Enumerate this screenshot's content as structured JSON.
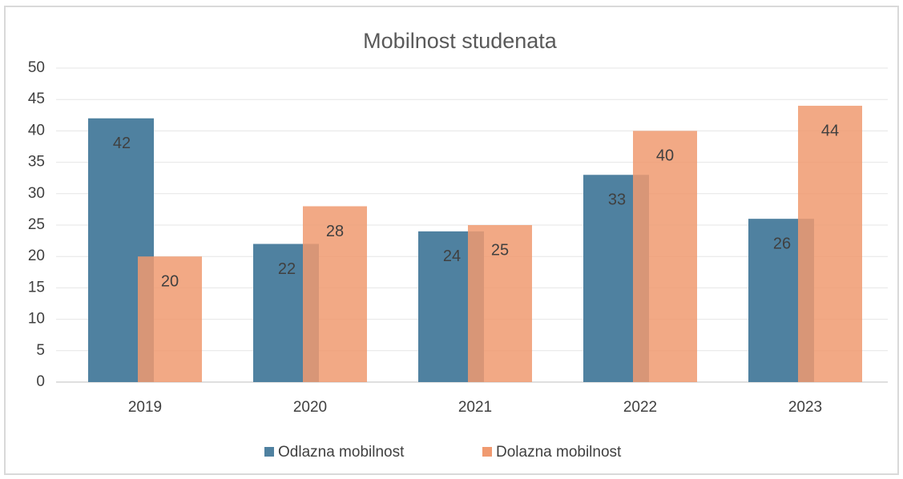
{
  "chart_data": {
    "type": "bar",
    "title": "Mobilnost studenata",
    "categories": [
      "2019",
      "2020",
      "2021",
      "2022",
      "2023"
    ],
    "series": [
      {
        "name": "Odlazna mobilnost",
        "color": "#4f81a0",
        "values": [
          42,
          22,
          24,
          33,
          26
        ]
      },
      {
        "name": "Dolazna mobilnost",
        "color": "#f09a70",
        "values": [
          20,
          28,
          25,
          40,
          44
        ]
      }
    ],
    "ylim": [
      0,
      50
    ],
    "yticks": [
      0,
      5,
      10,
      15,
      20,
      25,
      30,
      35,
      40,
      45,
      50
    ],
    "grid": true,
    "legend": "bottom"
  }
}
